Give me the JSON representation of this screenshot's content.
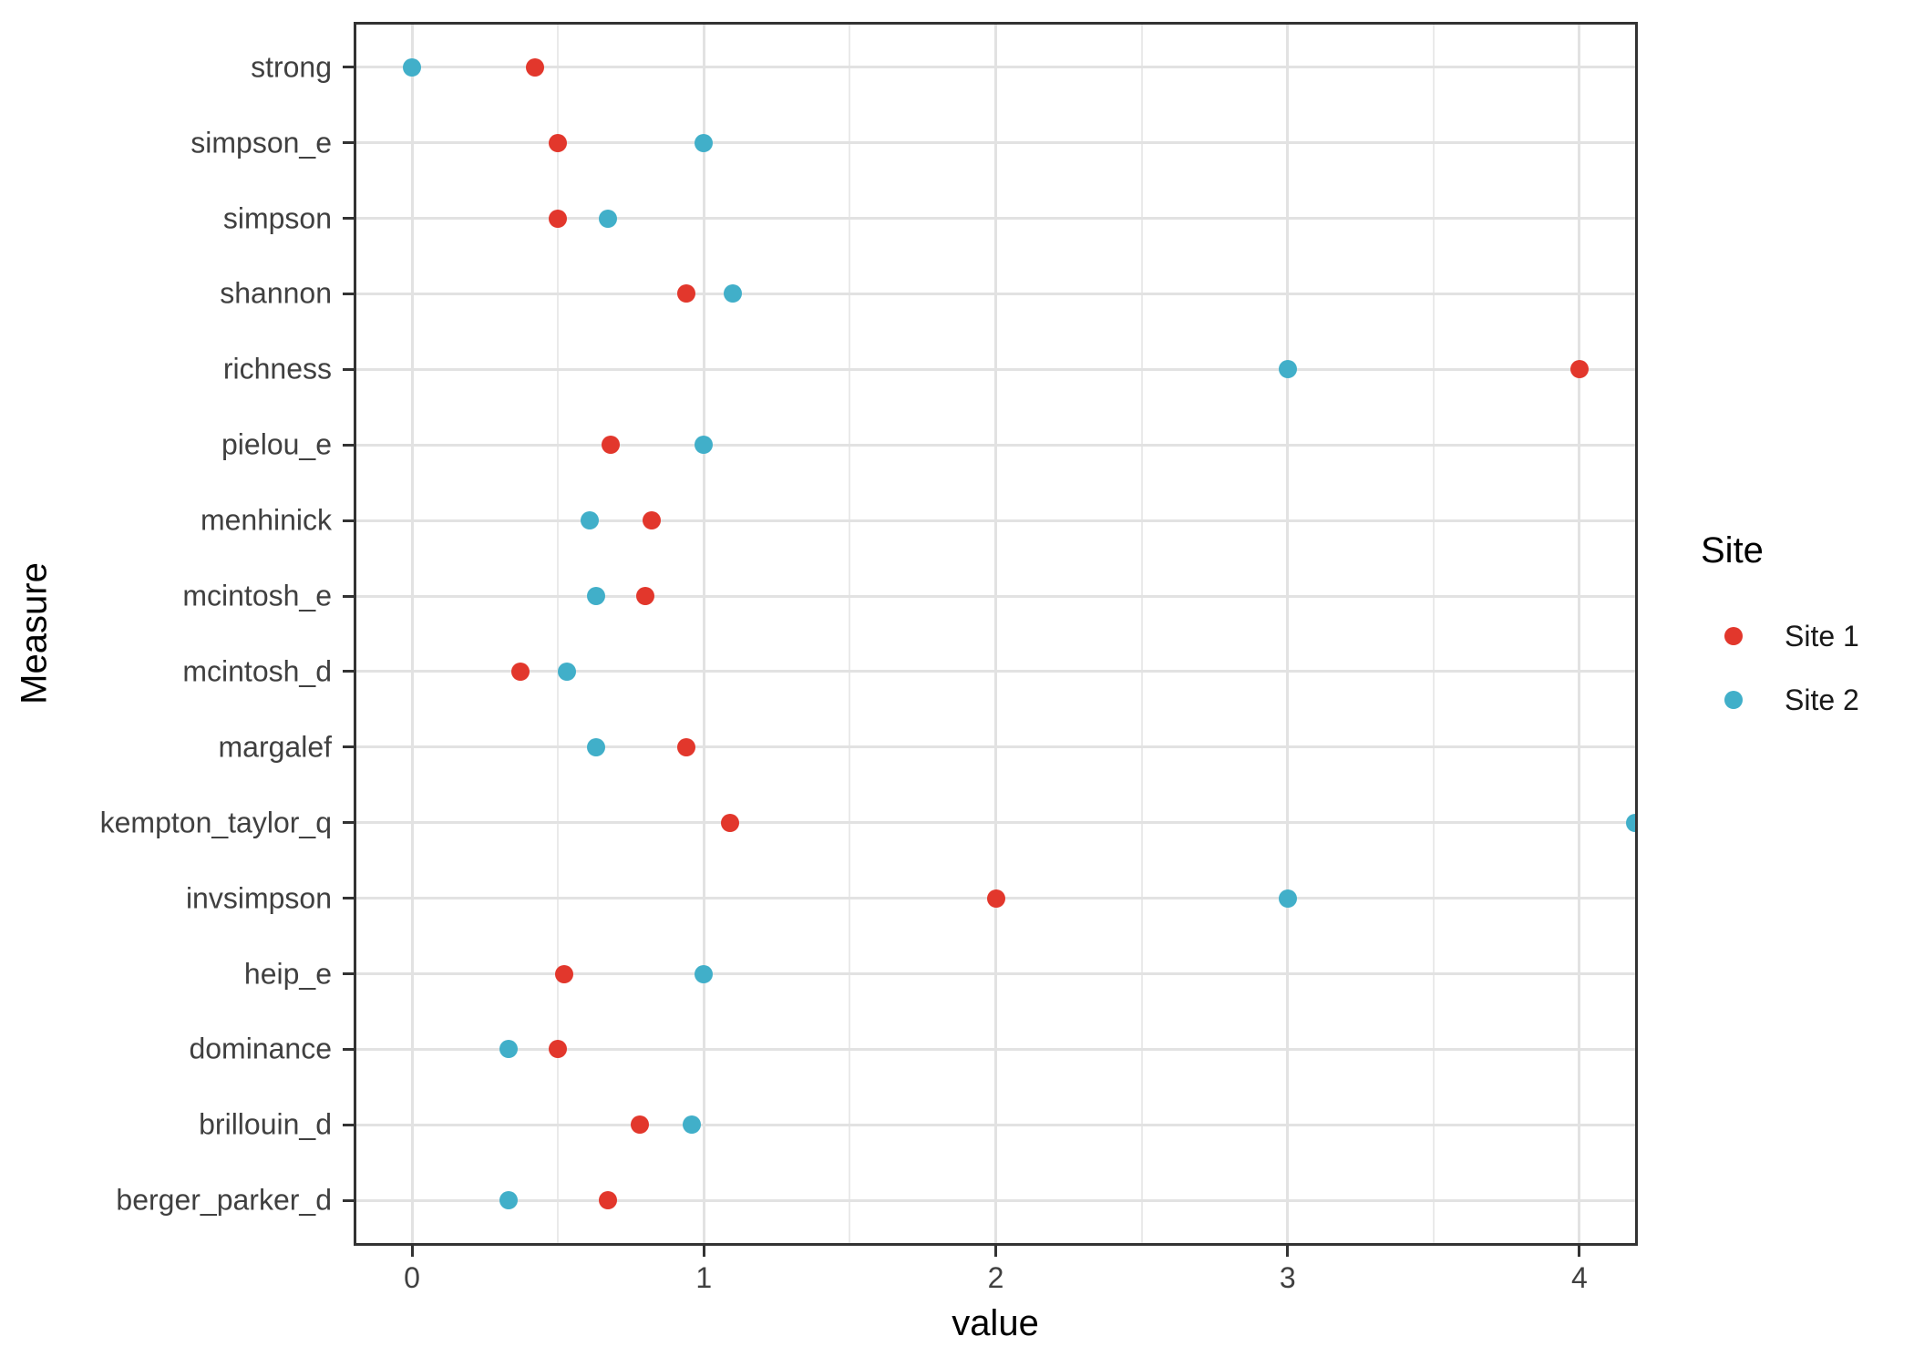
{
  "figure": {
    "x_axis_title": "value",
    "y_axis_title": "Measure",
    "legend": {
      "title": "Site",
      "items": [
        {
          "label": "Site 1",
          "color": "#e2372c"
        },
        {
          "label": "Site 2",
          "color": "#41afc9"
        }
      ]
    }
  },
  "chart_data": {
    "type": "scatter",
    "subtype": "horizontal-dot-plot",
    "title": "",
    "xlabel": "value",
    "ylabel": "Measure",
    "categories_top_to_bottom": [
      "strong",
      "simpson_e",
      "simpson",
      "shannon",
      "richness",
      "pielou_e",
      "menhinick",
      "mcintosh_e",
      "mcintosh_d",
      "margalef",
      "kempton_taylor_q",
      "invsimpson",
      "heip_e",
      "dominance",
      "brillouin_d",
      "berger_parker_d"
    ],
    "series": [
      {
        "name": "Site 1",
        "color": "#e2372c",
        "values": [
          0.42,
          0.5,
          0.5,
          0.94,
          4.0,
          0.68,
          0.82,
          0.8,
          0.37,
          0.94,
          1.09,
          2.0,
          0.52,
          0.5,
          0.78,
          0.67
        ]
      },
      {
        "name": "Site 2",
        "color": "#41afc9",
        "values": [
          0.0,
          1.0,
          0.67,
          1.1,
          3.0,
          1.0,
          0.61,
          0.63,
          0.53,
          0.63,
          4.19,
          3.0,
          1.0,
          0.33,
          0.96,
          0.33
        ]
      }
    ],
    "x_ticks": [
      0,
      1,
      2,
      3,
      4
    ],
    "x_minor_gridlines": [
      0.5,
      1.5,
      2.5,
      3.5
    ],
    "xlim": [
      -0.2,
      4.2
    ],
    "grid": "horizontal major line per category; vertical major at integers, minor at halves",
    "legend_position": "right",
    "legend_title": "Site",
    "panel_border": true,
    "background": "#ffffff"
  }
}
